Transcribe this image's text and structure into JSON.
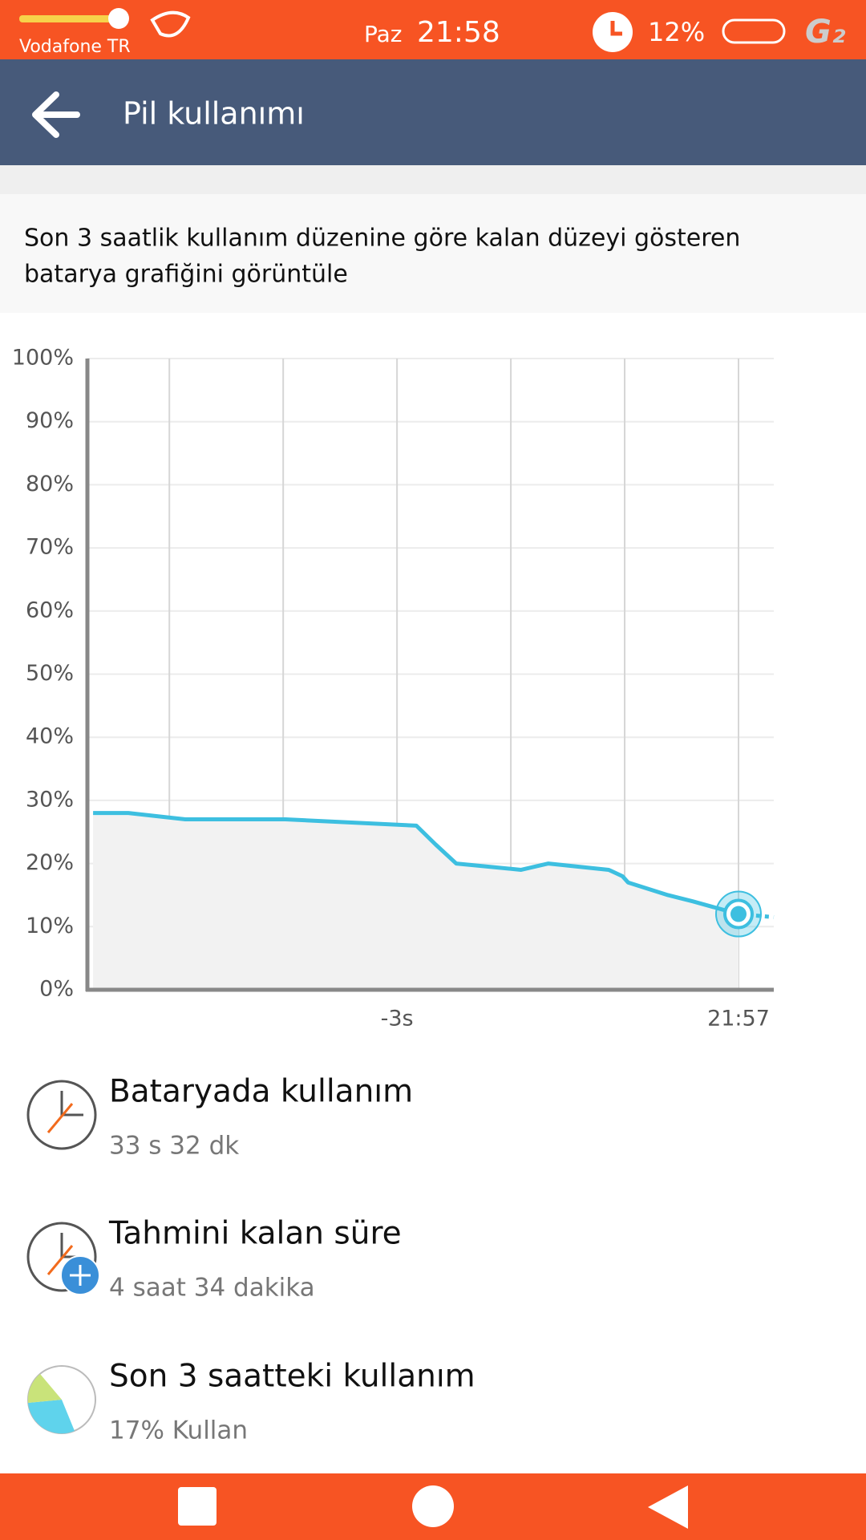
{
  "status_bar": {
    "carrier": "Vodafone TR",
    "day": "Paz",
    "time": "21:58",
    "battery": "12%"
  },
  "app_bar": {
    "title": "Pil kullanımı"
  },
  "description": [
    "Son 3 saatlik kullanım düzenine göre kalan düzeyi gösteren",
    "batarya grafiğini görüntüle"
  ],
  "chart": {
    "type": "line",
    "color": "#3dbfe0",
    "x": [
      -5.67,
      -5.36,
      -4.86,
      -3.98,
      -2.83,
      -2.66,
      -2.48,
      -1.91,
      -1.67,
      -1.14,
      -1.02,
      -0.97,
      -0.62,
      -0.4,
      0
    ],
    "values": [
      28,
      28,
      27,
      27,
      26,
      23,
      20,
      19,
      20,
      19,
      18,
      17,
      15,
      14,
      12
    ],
    "projection": {
      "x": [
        0,
        0.31
      ],
      "values": [
        12,
        11.5
      ]
    },
    "xlim": [
      -5.72,
      0.31
    ],
    "ylim": [
      0,
      100
    ],
    "xgrid": [
      -5,
      -4,
      -3,
      -2,
      -1,
      0
    ],
    "xticks": [
      {
        "value": -3,
        "label": "-3s"
      },
      {
        "value": 0,
        "label": "21:57"
      }
    ],
    "yticks": [
      {
        "value": 0,
        "label": "0%"
      },
      {
        "value": 10,
        "label": "10%"
      },
      {
        "value": 20,
        "label": "20%"
      },
      {
        "value": 30,
        "label": "30%"
      },
      {
        "value": 40,
        "label": "40%"
      },
      {
        "value": 50,
        "label": "50%"
      },
      {
        "value": 60,
        "label": "60%"
      },
      {
        "value": 70,
        "label": "70%"
      },
      {
        "value": 80,
        "label": "80%"
      },
      {
        "value": 90,
        "label": "90%"
      },
      {
        "value": 100,
        "label": "100%"
      }
    ]
  },
  "items": [
    {
      "title": "Bataryada kullanım",
      "detail": "33 s 32 dk"
    },
    {
      "title": "Tahmini kalan süre",
      "detail": "4 saat 34 dakika"
    },
    {
      "title": "Son 3 saatteki kullanım",
      "detail": "17% Kullan"
    }
  ]
}
